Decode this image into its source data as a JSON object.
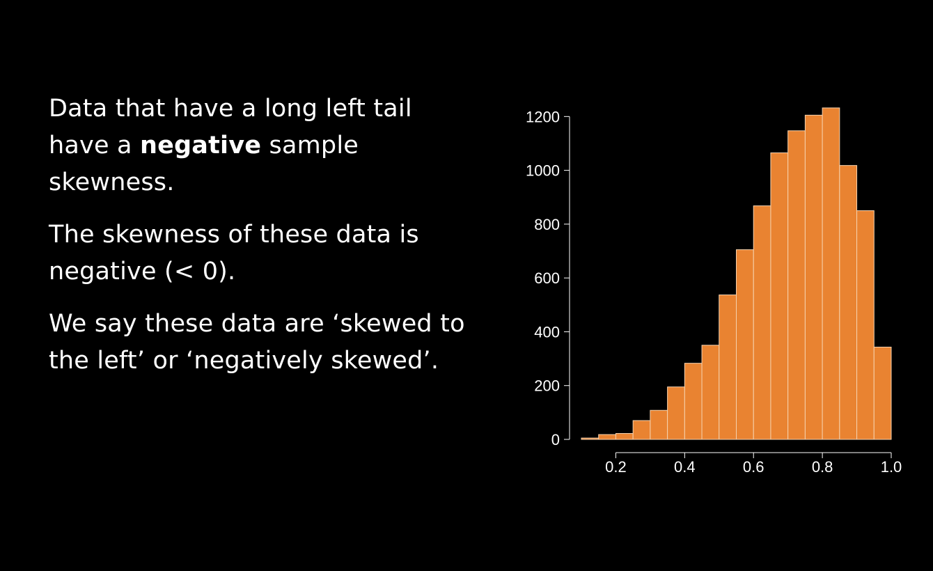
{
  "text": {
    "p1_before": "Data that have a long left tail have a ",
    "p1_bold": "negative",
    "p1_after": " sample skewness.",
    "p2": "The skewness of these data is negative (< 0).",
    "p3": "We say these data are ‘skewed to the left’ or ‘negatively skewed’."
  },
  "chart_data": {
    "type": "bar",
    "subtype": "histogram",
    "bar_color": "#E98331",
    "bin_edges": [
      0.1,
      0.15,
      0.2,
      0.25,
      0.3,
      0.35,
      0.4,
      0.45,
      0.5,
      0.55,
      0.6,
      0.65,
      0.7,
      0.75,
      0.8,
      0.85,
      0.9,
      0.95,
      1.0
    ],
    "values": [
      5,
      18,
      22,
      70,
      108,
      195,
      283,
      350,
      537,
      705,
      868,
      1065,
      1147,
      1205,
      1232,
      1018,
      850,
      343
    ],
    "xlim": [
      0.1,
      1.0
    ],
    "ylim": [
      0,
      1250
    ],
    "xticks": [
      "0.2",
      "0.4",
      "0.6",
      "0.8",
      "1.0"
    ],
    "xtick_values": [
      0.2,
      0.4,
      0.6,
      0.8,
      1.0
    ],
    "yticks": [
      "0",
      "200",
      "400",
      "600",
      "800",
      "1000",
      "1200"
    ],
    "ytick_values": [
      0,
      200,
      400,
      600,
      800,
      1000,
      1200
    ],
    "title": "",
    "xlabel": "",
    "ylabel": ""
  }
}
